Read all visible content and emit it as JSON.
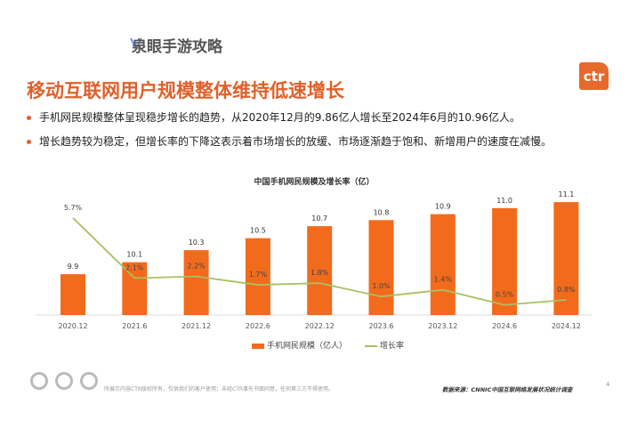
{
  "brand": "泉眼手游攻略",
  "logo_text": "ctr",
  "title": "移动互联网用户规模整体维持低速增长",
  "bullets": [
    "手机网民规模整体呈现稳步增长的趋势，从2020年12月的9.86亿人增长至2024年6月的10.96亿人。",
    "增长趋势较为稳定，但增长率的下降这表示着市场增长的放缓、市场逐渐趋于饱和、新增用户的速度在减慢。"
  ],
  "footer_note": "所展示内容CTR版权所有，仅供我们的客户使用；未经CTR事先书面同意，任何第三方不得使用。",
  "source": "数据来源：CNNIC中国互联网络发展状况统计调查",
  "page_number": "4",
  "colors": {
    "accent": "#e0602a",
    "bar": "#f26b1d",
    "line": "#a8c060"
  },
  "chart_data": {
    "type": "bar",
    "title": "中国手机网民规模及增长率（亿）",
    "categories": [
      "2020.12",
      "2021.6",
      "2021.12",
      "2022.6",
      "2022.12",
      "2023.6",
      "2023.12",
      "2024.6",
      "2024.12"
    ],
    "series": [
      {
        "name": "手机网民规模（亿人）",
        "type": "bar",
        "values": [
          9.9,
          10.1,
          10.3,
          10.5,
          10.7,
          10.8,
          10.9,
          11.0,
          11.1
        ],
        "labels": [
          "9.9",
          "10.1",
          "10.3",
          "10.5",
          "10.7",
          "10.8",
          "10.9",
          "11.0",
          "11.1"
        ]
      },
      {
        "name": "增长率",
        "type": "line",
        "values": [
          5.7,
          2.1,
          2.2,
          1.7,
          1.8,
          1.0,
          1.4,
          0.5,
          0.8
        ],
        "labels": [
          "5.7%",
          "2.1%",
          "2.2%",
          "1.7%",
          "1.8%",
          "1.0%",
          "1.4%",
          "0.5%",
          "0.8%"
        ]
      }
    ],
    "legend": "bottom"
  }
}
